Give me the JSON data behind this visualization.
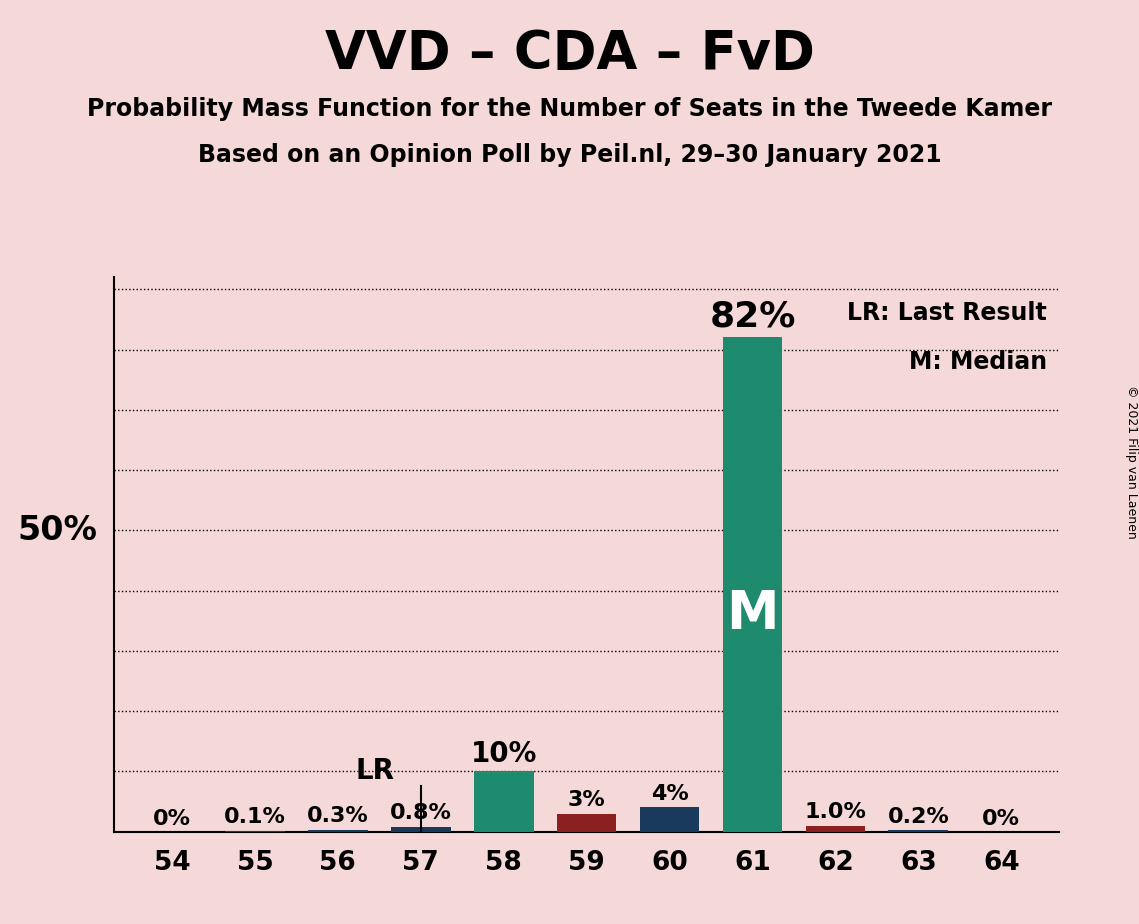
{
  "title": "VVD – CDA – FvD",
  "subtitle1": "Probability Mass Function for the Number of Seats in the Tweede Kamer",
  "subtitle2": "Based on an Opinion Poll by Peil.nl, 29–30 January 2021",
  "copyright": "© 2021 Filip van Laenen",
  "seats": [
    54,
    55,
    56,
    57,
    58,
    59,
    60,
    61,
    62,
    63,
    64
  ],
  "values": [
    0.0,
    0.1,
    0.3,
    0.8,
    10.0,
    3.0,
    4.0,
    82.0,
    1.0,
    0.2,
    0.0
  ],
  "labels": [
    "0%",
    "0.1%",
    "0.3%",
    "0.8%",
    "10%",
    "3%",
    "4%",
    "82%",
    "1.0%",
    "0.2%",
    "0%"
  ],
  "bar_colors": [
    "#1a3a5c",
    "#1a3a5c",
    "#1a3a5c",
    "#1a3a5c",
    "#1e8a6e",
    "#8b2020",
    "#1a3a5c",
    "#1e8a6e",
    "#8b2020",
    "#1a3a5c",
    "#1a3a5c"
  ],
  "median_seat": 61,
  "lr_seat": 57,
  "background_color": "#f5d8d8",
  "ylim_max": 92,
  "ylabel_50": "50%",
  "legend_lr": "LR: Last Result",
  "legend_m": "M: Median",
  "median_label": "M",
  "lr_label": "LR",
  "grid_lines": [
    10,
    20,
    30,
    40,
    50,
    60,
    70,
    80,
    90
  ],
  "title_fontsize": 38,
  "subtitle_fontsize": 17,
  "label_fontsize_small": 16,
  "label_fontsize_medium": 20,
  "label_fontsize_large": 26,
  "tick_fontsize": 19,
  "fifty_fontsize": 24,
  "legend_fontsize": 17,
  "M_fontsize": 38,
  "LR_fontsize": 20,
  "bar_width": 0.72
}
